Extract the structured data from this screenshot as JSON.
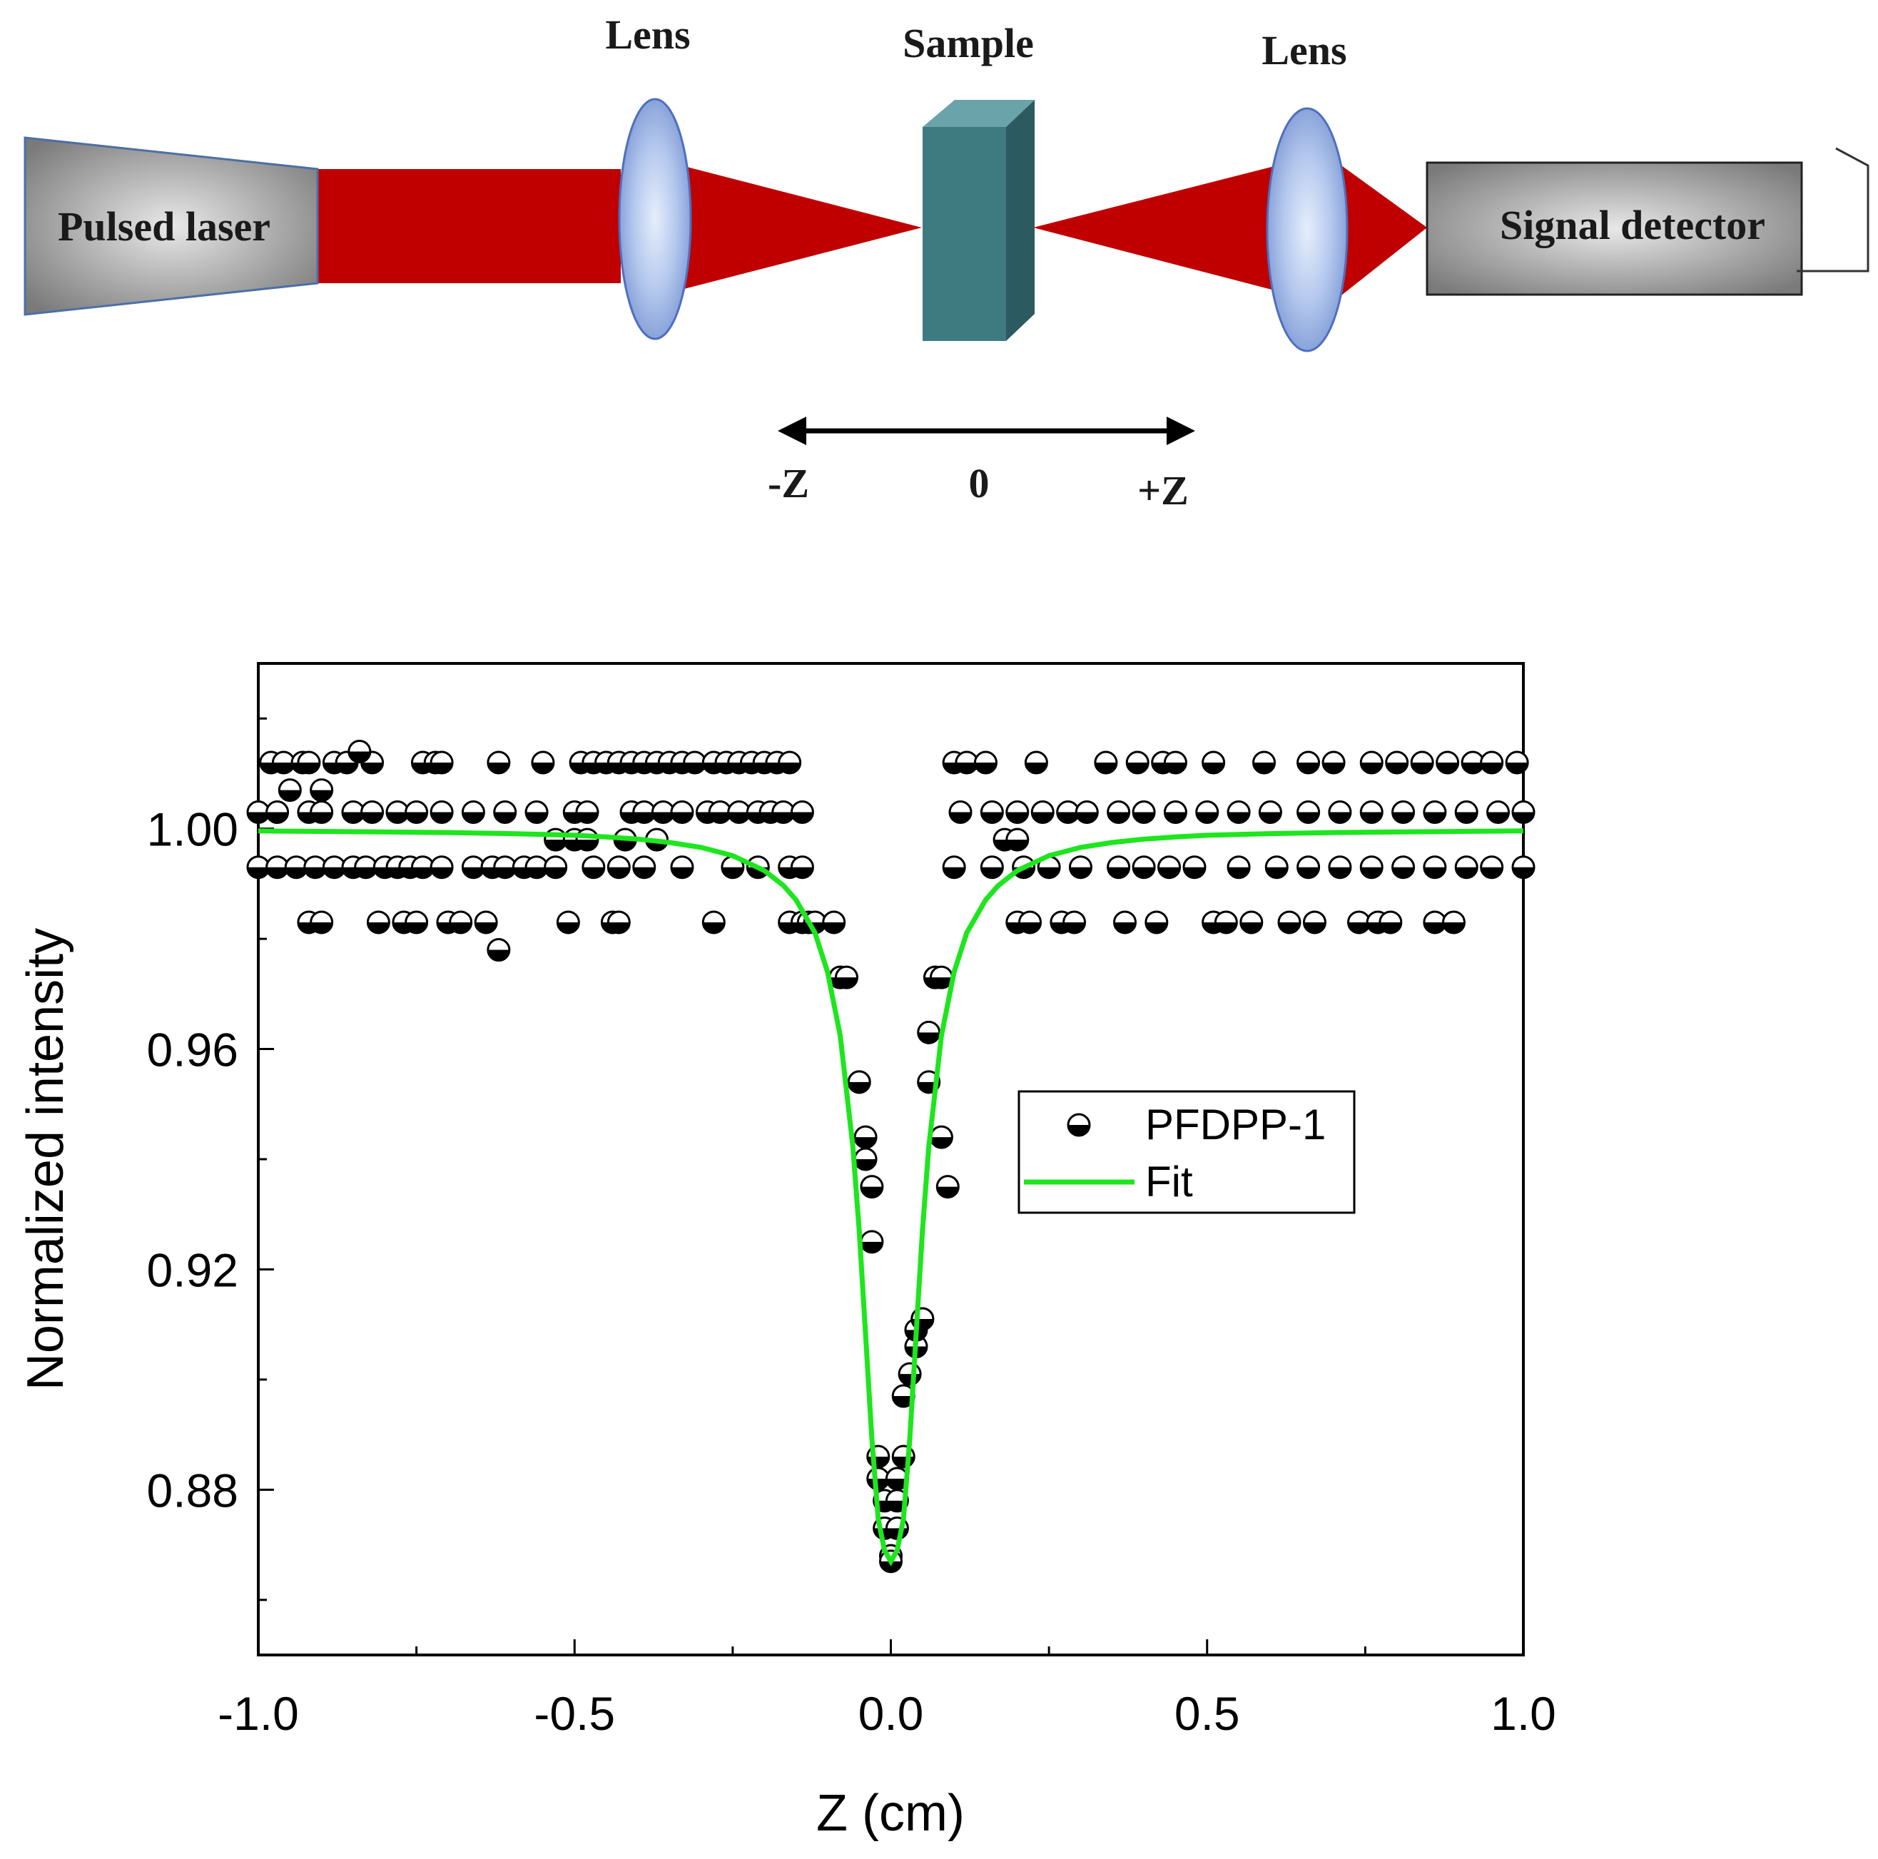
{
  "setup": {
    "laser_label": "Pulsed laser",
    "lens1_label": "Lens",
    "sample_label": "Sample",
    "lens2_label": "Lens",
    "detector_label": "Signal detector",
    "axis_minus_label": "-Z",
    "axis_zero_label": "0",
    "axis_plus_label": "+Z",
    "colors": {
      "beam": "#c00000",
      "laser_body": "#8f8f8f",
      "sample_front": "#3d7a80",
      "sample_side": "#2c5a60",
      "sample_top": "#5f9aa0",
      "lens": "#9fb7e6"
    }
  },
  "chart_data": {
    "type": "scatter",
    "xlabel": "Z (cm)",
    "ylabel": "Normalized intensity",
    "xlim": [
      -1.0,
      1.0
    ],
    "ylim": [
      0.85,
      1.03
    ],
    "x_ticks": [
      "-1.0",
      "-0.5",
      "0.0",
      "0.5",
      "1.0"
    ],
    "y_ticks": [
      "0.88",
      "0.92",
      "0.96",
      "1.00"
    ],
    "legend_position": "center-right",
    "series": [
      {
        "name": "PFDPP-1",
        "kind": "markers",
        "color": "#000000",
        "x": [
          -0.98,
          -0.96,
          -0.93,
          -0.92,
          -0.88,
          -0.86,
          -0.82,
          -0.74,
          -0.72,
          -0.71,
          -0.62,
          -0.55,
          -0.49,
          -0.47,
          -0.45,
          -0.43,
          -0.41,
          -0.39,
          -0.37,
          -0.35,
          -0.33,
          -0.31,
          -0.28,
          -0.26,
          -0.24,
          -0.22,
          -0.2,
          -0.18,
          -0.16,
          -1.0,
          -0.97,
          -0.92,
          -0.9,
          -0.85,
          -0.82,
          -0.78,
          -0.75,
          -0.71,
          -0.66,
          -0.61,
          -0.56,
          -0.5,
          -0.48,
          -0.41,
          -0.39,
          -0.36,
          -0.33,
          -0.29,
          -0.27,
          -0.24,
          -0.21,
          -0.19,
          -0.17,
          -0.14,
          -1.0,
          -0.97,
          -0.94,
          -0.91,
          -0.88,
          -0.85,
          -0.83,
          -0.8,
          -0.78,
          -0.76,
          -0.74,
          -0.71,
          -0.66,
          -0.63,
          -0.61,
          -0.58,
          -0.56,
          -0.53,
          -0.47,
          -0.43,
          -0.39,
          -0.33,
          -0.25,
          -0.21,
          -0.16,
          -0.14,
          -0.92,
          -0.9,
          -0.81,
          -0.77,
          -0.75,
          -0.7,
          -0.68,
          -0.64,
          -0.51,
          -0.44,
          -0.43,
          -0.28,
          -0.16,
          -0.14,
          -0.13,
          -0.12,
          -0.95,
          -0.9,
          -0.84,
          -0.62,
          -0.53,
          -0.5,
          -0.48,
          -0.42,
          -0.37,
          -0.09,
          -0.08,
          -0.08,
          -0.07,
          -0.05,
          -0.05,
          -0.04,
          -0.04,
          -0.03,
          -0.03,
          -0.02,
          -0.02,
          -0.01,
          -0.01,
          0.0,
          0.0,
          0.01,
          0.01,
          0.01,
          0.02,
          0.02,
          0.03,
          0.04,
          0.04,
          0.05,
          0.05,
          0.06,
          0.06,
          0.07,
          0.07,
          0.08,
          0.08,
          0.09,
          0.1,
          0.12,
          0.15,
          0.23,
          0.34,
          0.39,
          0.43,
          0.45,
          0.51,
          0.59,
          0.66,
          0.7,
          0.76,
          0.8,
          0.84,
          0.88,
          0.92,
          0.95,
          0.99,
          0.11,
          0.16,
          0.2,
          0.24,
          0.28,
          0.31,
          0.36,
          0.4,
          0.45,
          0.5,
          0.55,
          0.6,
          0.66,
          0.71,
          0.76,
          0.81,
          0.86,
          0.91,
          0.96,
          1.0,
          0.1,
          0.16,
          0.21,
          0.25,
          0.3,
          0.36,
          0.4,
          0.44,
          0.48,
          0.55,
          0.61,
          0.66,
          0.71,
          0.76,
          0.81,
          0.86,
          0.91,
          0.95,
          1.0,
          0.2,
          0.22,
          0.27,
          0.29,
          0.37,
          0.42,
          0.51,
          0.53,
          0.57,
          0.63,
          0.67,
          0.74,
          0.77,
          0.79,
          0.86,
          0.89,
          0.18,
          0.2
        ],
        "y": [
          1.012,
          1.012,
          1.012,
          1.012,
          1.012,
          1.012,
          1.012,
          1.012,
          1.012,
          1.012,
          1.012,
          1.012,
          1.012,
          1.012,
          1.012,
          1.012,
          1.012,
          1.012,
          1.012,
          1.012,
          1.012,
          1.012,
          1.012,
          1.012,
          1.012,
          1.012,
          1.012,
          1.012,
          1.012,
          1.003,
          1.003,
          1.003,
          1.003,
          1.003,
          1.003,
          1.003,
          1.003,
          1.003,
          1.003,
          1.003,
          1.003,
          1.003,
          1.003,
          1.003,
          1.003,
          1.003,
          1.003,
          1.003,
          1.003,
          1.003,
          1.003,
          1.003,
          1.003,
          1.003,
          0.993,
          0.993,
          0.993,
          0.993,
          0.993,
          0.993,
          0.993,
          0.993,
          0.993,
          0.993,
          0.993,
          0.993,
          0.993,
          0.993,
          0.993,
          0.993,
          0.993,
          0.993,
          0.993,
          0.993,
          0.993,
          0.993,
          0.993,
          0.993,
          0.993,
          0.993,
          0.983,
          0.983,
          0.983,
          0.983,
          0.983,
          0.983,
          0.983,
          0.983,
          0.983,
          0.983,
          0.983,
          0.983,
          0.983,
          0.983,
          0.983,
          0.983,
          1.007,
          1.007,
          1.014,
          0.978,
          0.998,
          0.998,
          0.998,
          0.998,
          0.998,
          0.983,
          0.973,
          0.973,
          0.973,
          0.954,
          0.954,
          0.944,
          0.94,
          0.935,
          0.925,
          0.886,
          0.882,
          0.878,
          0.873,
          0.868,
          0.867,
          0.873,
          0.878,
          0.882,
          0.886,
          0.897,
          0.901,
          0.906,
          0.909,
          0.911,
          0.911,
          0.954,
          0.963,
          0.973,
          0.973,
          0.973,
          0.944,
          0.935,
          1.012,
          1.012,
          1.012,
          1.012,
          1.012,
          1.012,
          1.012,
          1.012,
          1.012,
          1.012,
          1.012,
          1.012,
          1.012,
          1.012,
          1.012,
          1.012,
          1.012,
          1.012,
          1.012,
          1.003,
          1.003,
          1.003,
          1.003,
          1.003,
          1.003,
          1.003,
          1.003,
          1.003,
          1.003,
          1.003,
          1.003,
          1.003,
          1.003,
          1.003,
          1.003,
          1.003,
          1.003,
          1.003,
          1.003,
          0.993,
          0.993,
          0.993,
          0.993,
          0.993,
          0.993,
          0.993,
          0.993,
          0.993,
          0.993,
          0.993,
          0.993,
          0.993,
          0.993,
          0.993,
          0.993,
          0.993,
          0.993,
          0.993,
          0.983,
          0.983,
          0.983,
          0.983,
          0.983,
          0.983,
          0.983,
          0.983,
          0.983,
          0.983,
          0.983,
          0.983,
          0.983,
          0.983,
          0.983,
          0.983,
          0.998,
          0.998
        ]
      },
      {
        "name": "Fit",
        "kind": "line",
        "color": "#1ee51e",
        "min_value": 0.867,
        "baseline": 1.0,
        "x": [
          -1.0,
          -0.9,
          -0.8,
          -0.7,
          -0.6,
          -0.5,
          -0.45,
          -0.4,
          -0.35,
          -0.3,
          -0.25,
          -0.2,
          -0.17,
          -0.15,
          -0.12,
          -0.1,
          -0.08,
          -0.06,
          -0.05,
          -0.04,
          -0.03,
          -0.02,
          -0.01,
          0.0,
          0.01,
          0.02,
          0.03,
          0.04,
          0.05,
          0.06,
          0.08,
          0.1,
          0.12,
          0.15,
          0.17,
          0.2,
          0.25,
          0.3,
          0.35,
          0.4,
          0.45,
          0.5,
          0.6,
          0.7,
          0.8,
          0.9,
          1.0
        ],
        "y": [
          0.9996,
          0.9995,
          0.9994,
          0.9993,
          0.9991,
          0.9988,
          0.9985,
          0.9981,
          0.9975,
          0.9966,
          0.9951,
          0.9924,
          0.9897,
          0.9871,
          0.9811,
          0.974,
          0.9624,
          0.9423,
          0.927,
          0.9084,
          0.8893,
          0.8747,
          0.869,
          0.867,
          0.869,
          0.8747,
          0.8893,
          0.9084,
          0.927,
          0.9423,
          0.9624,
          0.974,
          0.9811,
          0.9871,
          0.9897,
          0.9924,
          0.9951,
          0.9966,
          0.9975,
          0.9981,
          0.9985,
          0.9988,
          0.9991,
          0.9993,
          0.9994,
          0.9995,
          0.9996
        ]
      }
    ]
  }
}
